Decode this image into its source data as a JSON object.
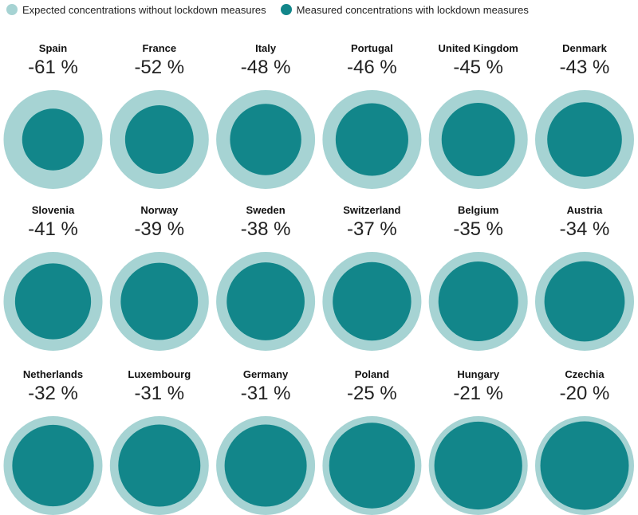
{
  "legend": {
    "expected_label": "Expected concentrations without lockdown measures",
    "measured_label": "Measured concentrations with lockdown measures"
  },
  "colors": {
    "expected": "#a6d3d3",
    "measured": "#12868a"
  },
  "chart_data": {
    "type": "proportional-area circles",
    "title": "",
    "series": [
      {
        "name": "Expected concentrations without lockdown measures",
        "value": 100
      },
      {
        "name": "Measured concentrations with lockdown measures",
        "relative_to_expected": "100 + change"
      }
    ],
    "unit": "%",
    "countries": [
      {
        "name": "Spain",
        "change": -61,
        "label": "-61 %"
      },
      {
        "name": "France",
        "change": -52,
        "label": "-52 %"
      },
      {
        "name": "Italy",
        "change": -48,
        "label": "-48 %"
      },
      {
        "name": "Portugal",
        "change": -46,
        "label": "-46 %"
      },
      {
        "name": "United Kingdom",
        "change": -45,
        "label": "-45 %"
      },
      {
        "name": "Denmark",
        "change": -43,
        "label": "-43 %"
      },
      {
        "name": "Slovenia",
        "change": -41,
        "label": "-41 %"
      },
      {
        "name": "Norway",
        "change": -39,
        "label": "-39 %"
      },
      {
        "name": "Sweden",
        "change": -38,
        "label": "-38 %"
      },
      {
        "name": "Switzerland",
        "change": -37,
        "label": "-37 %"
      },
      {
        "name": "Belgium",
        "change": -35,
        "label": "-35 %"
      },
      {
        "name": "Austria",
        "change": -34,
        "label": "-34 %"
      },
      {
        "name": "Netherlands",
        "change": -32,
        "label": "-32 %"
      },
      {
        "name": "Luxembourg",
        "change": -31,
        "label": "-31 %"
      },
      {
        "name": "Germany",
        "change": -31,
        "label": "-31 %"
      },
      {
        "name": "Poland",
        "change": -25,
        "label": "-25 %"
      },
      {
        "name": "Hungary",
        "change": -21,
        "label": "-21 %"
      },
      {
        "name": "Czechia",
        "change": -20,
        "label": "-20 %"
      }
    ]
  }
}
